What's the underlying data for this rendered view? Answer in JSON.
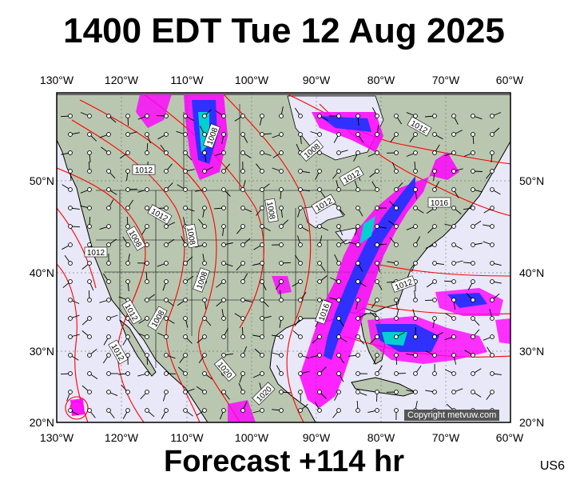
{
  "title": "1400 EDT Tue 12 Aug 2025",
  "footer": "Forecast +114 hr",
  "region_code": "US6",
  "copyright": "Copyright metvuw.com",
  "map": {
    "lon_range": [
      -130,
      -60
    ],
    "lat_range": [
      20,
      58
    ],
    "lon_labels": [
      "130°W",
      "120°W",
      "110°W",
      "100°W",
      "90°W",
      "80°W",
      "70°W",
      "60°W"
    ],
    "lat_labels": [
      "50°N",
      "40°N",
      "30°N",
      "20°N"
    ],
    "isobar_labels": [
      "1008",
      "1012",
      "1012",
      "1008",
      "1008",
      "1012",
      "1008",
      "1008",
      "1012",
      "1012",
      "1008",
      "1012",
      "1008",
      "1012",
      "1012",
      "1016",
      "1012",
      "1016",
      "1020",
      "1020"
    ],
    "colors": {
      "ocean": "#e8e8f8",
      "land": "#b9c7b0",
      "isobar": "#ff0000",
      "precip_light": "#ff00ff",
      "precip_mid": "#3030ff",
      "precip_high": "#00d0d0",
      "precip_max": "#00ff80"
    }
  }
}
